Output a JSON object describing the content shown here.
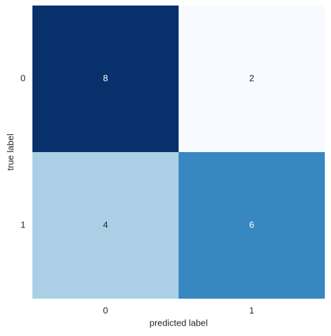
{
  "chart_data": {
    "type": "heatmap",
    "x_label": "predicted label",
    "y_label": "true label",
    "x_categories": [
      "0",
      "1"
    ],
    "y_categories": [
      "0",
      "1"
    ],
    "values": [
      [
        8,
        2
      ],
      [
        4,
        6
      ]
    ],
    "colors": [
      [
        "#08306b",
        "#f7fbff"
      ],
      [
        "#abd0e6",
        "#3787c0"
      ]
    ]
  }
}
